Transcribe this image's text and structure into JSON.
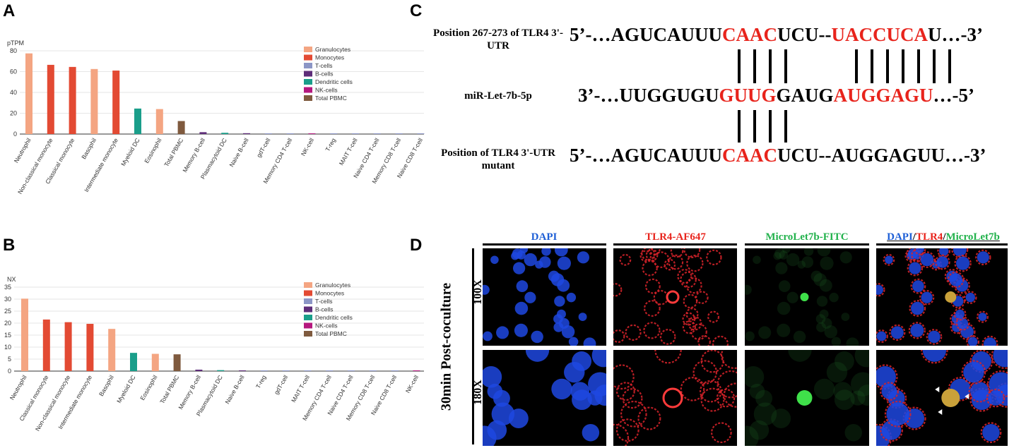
{
  "panels": {
    "a": "A",
    "b": "B",
    "c": "C",
    "d": "D"
  },
  "chart_data": [
    {
      "type": "bar",
      "ylabel": "pTPM",
      "ylim": [
        0,
        80
      ],
      "yticks": [
        0,
        20,
        40,
        60,
        80
      ],
      "categories": [
        "Neutrophil",
        "Non-classical monocyte",
        "Classical monocyte",
        "Basophil",
        "Intermediate monocyte",
        "Myeloid DC",
        "Eosinophil",
        "Total PBMC",
        "Memory B-cell",
        "Plasmacytoid DC",
        "Naive B-cell",
        "gdT-cell",
        "Memory CD4 T-cell",
        "NK-cell",
        "T-reg",
        "MAIT T-cell",
        "Naive CD4 T-cell",
        "Memory CD8 T-cell",
        "Naive CD8 T-cell"
      ],
      "values": [
        77.5,
        66.5,
        64.5,
        62.5,
        61.0,
        24.5,
        24.0,
        12.5,
        1.8,
        1.2,
        0.8,
        0.3,
        0.2,
        0.1,
        0.1,
        0.1,
        0.1,
        0.1,
        0.1
      ],
      "groups": [
        "Granulocytes",
        "Monocytes",
        "Monocytes",
        "Granulocytes",
        "Monocytes",
        "Dendritic cells",
        "Granulocytes",
        "Total PBMC",
        "B-cells",
        "Dendritic cells",
        "B-cells",
        "T-cells",
        "T-cells",
        "NK-cells",
        "T-cells",
        "T-cells",
        "T-cells",
        "T-cells",
        "T-cells"
      ],
      "legend": [
        "Granulocytes",
        "Monocytes",
        "T-cells",
        "B-cells",
        "Dendritic cells",
        "NK-cells",
        "Total PBMC"
      ],
      "legend_placement": "top-right"
    },
    {
      "type": "bar",
      "ylabel": "NX",
      "ylim": [
        0,
        35
      ],
      "yticks": [
        0,
        5,
        10,
        15,
        20,
        25,
        30,
        35
      ],
      "categories": [
        "Neutrophil",
        "Classical monocyte",
        "Non-classical monocyte",
        "Intermediate monocyte",
        "Basophil",
        "Myeloid DC",
        "Eosinophil",
        "Total PBMC",
        "Memory B-cell",
        "Plasmacytoid DC",
        "Naive B-cell",
        "T-reg",
        "gdT-cell",
        "MAIT T-cell",
        "Memory CD4 T-cell",
        "Naive CD4 T-cell",
        "Memory CD8 T-cell",
        "Naive CD8 T-cell",
        "NK-cell"
      ],
      "values": [
        30.2,
        21.5,
        20.4,
        19.7,
        17.6,
        7.6,
        7.2,
        7.0,
        0.6,
        0.4,
        0.3,
        0.1,
        0.1,
        0.1,
        0.1,
        0.1,
        0.1,
        0.1,
        0.1
      ],
      "groups": [
        "Granulocytes",
        "Monocytes",
        "Monocytes",
        "Monocytes",
        "Granulocytes",
        "Dendritic cells",
        "Granulocytes",
        "Total PBMC",
        "B-cells",
        "Dendritic cells",
        "B-cells",
        "T-cells",
        "T-cells",
        "T-cells",
        "T-cells",
        "T-cells",
        "T-cells",
        "T-cells",
        "NK-cells"
      ],
      "legend": [
        "Granulocytes",
        "Monocytes",
        "T-cells",
        "B-cells",
        "Dendritic cells",
        "NK-cells",
        "Total PBMC"
      ],
      "legend_placement": "top-right"
    }
  ],
  "group_colors": {
    "Granulocytes": "#f4a582",
    "Monocytes": "#e34a33",
    "T-cells": "#8c96c6",
    "B-cells": "#5e2d79",
    "Dendritic cells": "#1a9e8a",
    "NK-cells": "#b5177e",
    "Total PBMC": "#7f5a3e"
  },
  "alignment": {
    "label_top": "Position 267-273 of TLR4 3'-UTR",
    "label_mid": "miR-Let-7b-5p",
    "label_bottom": "Position of TLR4 3'-UTR mutant",
    "top_seq": [
      {
        "t": "5’-…AGUCAUUU",
        "h": false
      },
      {
        "t": "CAAC",
        "h": true
      },
      {
        "t": "UCU--",
        "h": false
      },
      {
        "t": "UACCUCA",
        "h": true
      },
      {
        "t": "U…-3’",
        "h": false
      }
    ],
    "mid_seq": [
      {
        "t": "3’-…UUGGUGU",
        "h": false
      },
      {
        "t": "GUUG",
        "h": true
      },
      {
        "t": "GAUG",
        "h": false
      },
      {
        "t": "AUGGAGU",
        "h": true
      },
      {
        "t": "…-5’",
        "h": false
      }
    ],
    "bottom_seq": [
      {
        "t": "5’-…AGUCAUUU",
        "h": false
      },
      {
        "t": "CAAC",
        "h": true
      },
      {
        "t": "UCU--AUGGAGUU…-3’",
        "h": false
      }
    ]
  },
  "microscopy": {
    "columns": [
      "DAPI",
      "TLR4-AF647",
      "MicroLet7b-FITC"
    ],
    "merged_title": {
      "p1": "DAPI",
      "s1": "/",
      "p2": "TLR4",
      "s2": "/",
      "p3": "MicroLet7b"
    },
    "column_colors": [
      "#1e5fd6",
      "#e8241c",
      "#22b24c"
    ],
    "rows": [
      "100X",
      "180X"
    ],
    "side_label": "30min Post-coculture"
  }
}
